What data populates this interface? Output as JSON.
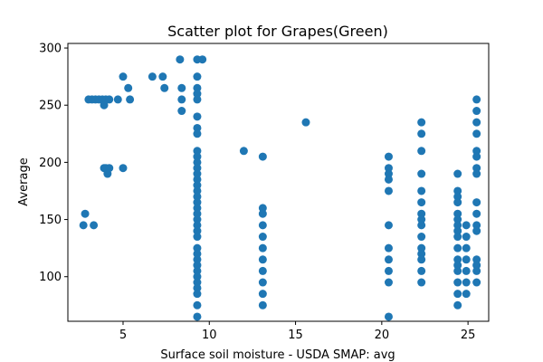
{
  "chart_data": {
    "type": "scatter",
    "title": "Scatter plot for Grapes(Green)",
    "xlabel": "Surface soil moisture - USDA SMAP: avg",
    "ylabel": "Average",
    "xlim": [
      1.8,
      26.2
    ],
    "ylim": [
      61,
      304
    ],
    "xticks": [
      5,
      10,
      15,
      20,
      25
    ],
    "yticks": [
      100,
      150,
      200,
      250,
      300
    ],
    "grid": false,
    "marker_color": "#1f77b4",
    "series": [
      {
        "points": [
          [
            2.7,
            145
          ],
          [
            2.8,
            155
          ],
          [
            3.3,
            145
          ],
          [
            3.0,
            255
          ],
          [
            3.2,
            255
          ],
          [
            3.4,
            255
          ],
          [
            3.6,
            255
          ],
          [
            3.8,
            255
          ],
          [
            3.9,
            250
          ],
          [
            4.0,
            255
          ],
          [
            4.2,
            255
          ],
          [
            4.7,
            255
          ],
          [
            3.9,
            195
          ],
          [
            4.0,
            195
          ],
          [
            4.1,
            190
          ],
          [
            4.2,
            195
          ],
          [
            5.0,
            195
          ],
          [
            5.0,
            275
          ],
          [
            5.3,
            265
          ],
          [
            5.4,
            255
          ],
          [
            6.7,
            275
          ],
          [
            7.3,
            275
          ],
          [
            7.4,
            265
          ],
          [
            8.3,
            290
          ],
          [
            8.4,
            265
          ],
          [
            8.4,
            255
          ],
          [
            8.4,
            245
          ],
          [
            9.3,
            290
          ],
          [
            9.6,
            290
          ],
          [
            9.3,
            275
          ],
          [
            9.3,
            265
          ],
          [
            9.3,
            260
          ],
          [
            9.3,
            255
          ],
          [
            9.3,
            240
          ],
          [
            9.3,
            230
          ],
          [
            9.3,
            225
          ],
          [
            9.3,
            210
          ],
          [
            9.3,
            205
          ],
          [
            9.3,
            200
          ],
          [
            9.3,
            195
          ],
          [
            9.3,
            190
          ],
          [
            9.3,
            185
          ],
          [
            9.3,
            180
          ],
          [
            9.3,
            175
          ],
          [
            9.3,
            170
          ],
          [
            9.3,
            165
          ],
          [
            9.3,
            160
          ],
          [
            9.3,
            155
          ],
          [
            9.3,
            150
          ],
          [
            9.3,
            145
          ],
          [
            9.3,
            140
          ],
          [
            9.3,
            135
          ],
          [
            9.3,
            125
          ],
          [
            9.3,
            120
          ],
          [
            9.3,
            115
          ],
          [
            9.3,
            110
          ],
          [
            9.3,
            105
          ],
          [
            9.3,
            100
          ],
          [
            9.3,
            95
          ],
          [
            9.3,
            90
          ],
          [
            9.3,
            85
          ],
          [
            9.3,
            75
          ],
          [
            9.3,
            65
          ],
          [
            12.0,
            210
          ],
          [
            13.1,
            205
          ],
          [
            13.1,
            160
          ],
          [
            13.1,
            155
          ],
          [
            13.1,
            145
          ],
          [
            13.1,
            135
          ],
          [
            13.1,
            125
          ],
          [
            13.1,
            115
          ],
          [
            13.1,
            105
          ],
          [
            13.1,
            95
          ],
          [
            13.1,
            85
          ],
          [
            13.1,
            75
          ],
          [
            15.6,
            235
          ],
          [
            20.4,
            205
          ],
          [
            20.4,
            195
          ],
          [
            20.4,
            190
          ],
          [
            20.4,
            185
          ],
          [
            20.4,
            175
          ],
          [
            20.4,
            145
          ],
          [
            20.4,
            125
          ],
          [
            20.4,
            115
          ],
          [
            20.4,
            105
          ],
          [
            20.4,
            95
          ],
          [
            20.4,
            65
          ],
          [
            22.3,
            235
          ],
          [
            22.3,
            225
          ],
          [
            22.3,
            210
          ],
          [
            22.3,
            190
          ],
          [
            22.3,
            175
          ],
          [
            22.3,
            165
          ],
          [
            22.3,
            155
          ],
          [
            22.3,
            150
          ],
          [
            22.3,
            145
          ],
          [
            22.3,
            135
          ],
          [
            22.3,
            125
          ],
          [
            22.3,
            120
          ],
          [
            22.3,
            115
          ],
          [
            22.3,
            105
          ],
          [
            22.3,
            95
          ],
          [
            24.4,
            190
          ],
          [
            24.4,
            175
          ],
          [
            24.4,
            170
          ],
          [
            24.4,
            165
          ],
          [
            24.4,
            155
          ],
          [
            24.4,
            150
          ],
          [
            24.4,
            145
          ],
          [
            24.4,
            140
          ],
          [
            24.4,
            135
          ],
          [
            24.4,
            125
          ],
          [
            24.4,
            115
          ],
          [
            24.4,
            110
          ],
          [
            24.4,
            105
          ],
          [
            24.4,
            95
          ],
          [
            24.4,
            85
          ],
          [
            24.4,
            75
          ],
          [
            24.9,
            145
          ],
          [
            24.9,
            135
          ],
          [
            24.9,
            125
          ],
          [
            24.9,
            115
          ],
          [
            24.9,
            105
          ],
          [
            24.9,
            95
          ],
          [
            24.9,
            85
          ],
          [
            25.5,
            255
          ],
          [
            25.5,
            245
          ],
          [
            25.5,
            235
          ],
          [
            25.5,
            225
          ],
          [
            25.5,
            210
          ],
          [
            25.5,
            205
          ],
          [
            25.5,
            195
          ],
          [
            25.5,
            190
          ],
          [
            25.5,
            165
          ],
          [
            25.5,
            155
          ],
          [
            25.5,
            145
          ],
          [
            25.5,
            140
          ],
          [
            25.5,
            115
          ],
          [
            25.5,
            110
          ],
          [
            25.5,
            105
          ],
          [
            25.5,
            95
          ]
        ]
      }
    ]
  }
}
